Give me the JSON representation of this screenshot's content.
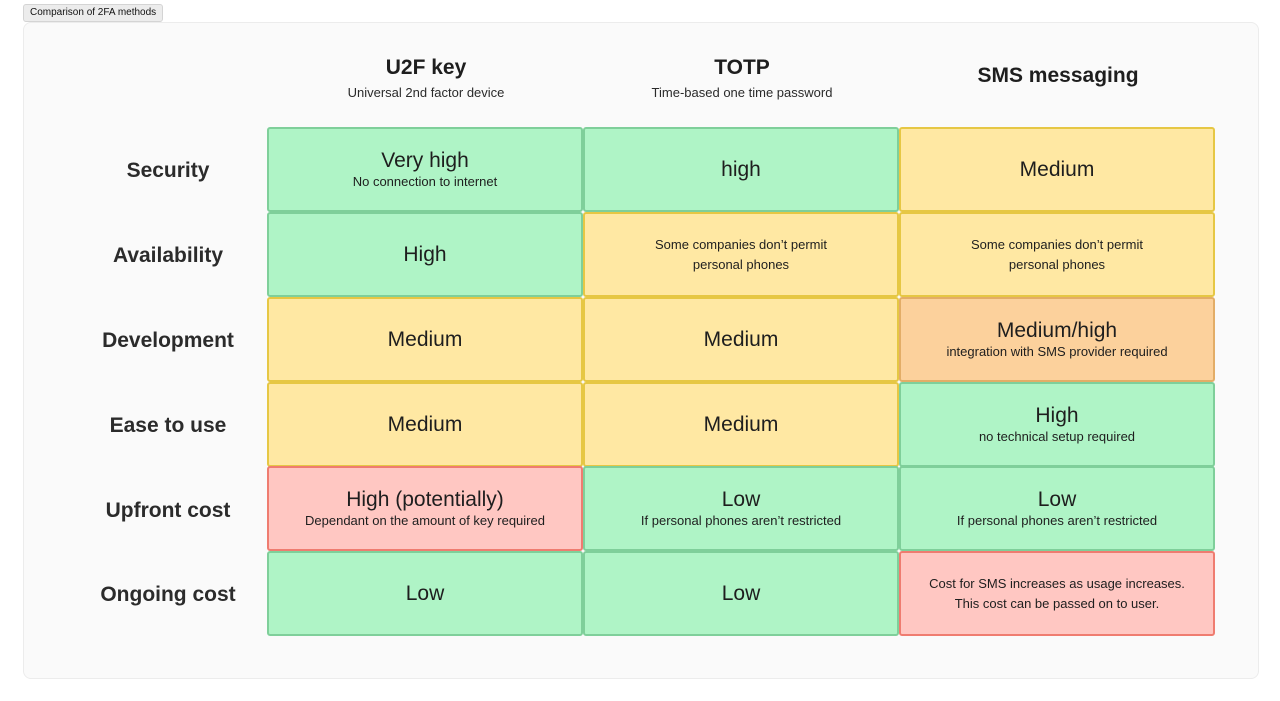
{
  "frame": {
    "label": "Comparison of 2FA methods"
  },
  "columns": [
    {
      "title": "U2F key",
      "subtitle": "Universal 2nd factor device"
    },
    {
      "title": "TOTP",
      "subtitle": "Time-based one time password"
    },
    {
      "title": "SMS messaging",
      "subtitle": ""
    }
  ],
  "rows": [
    {
      "label": "Security",
      "cells": [
        {
          "main": "Very high",
          "sub": "No connection to internet",
          "status": "green"
        },
        {
          "main": "high",
          "sub": "",
          "status": "green"
        },
        {
          "main": "Medium",
          "sub": "",
          "status": "yellow"
        }
      ]
    },
    {
      "label": "Availability",
      "cells": [
        {
          "main": "High",
          "sub": "",
          "status": "green"
        },
        {
          "text": "Some companies don’t permit personal phones",
          "status": "yellow"
        },
        {
          "text": "Some companies don’t permit personal phones",
          "status": "yellow"
        }
      ]
    },
    {
      "label": "Development",
      "cells": [
        {
          "main": "Medium",
          "sub": "",
          "status": "yellow"
        },
        {
          "main": "Medium",
          "sub": "",
          "status": "yellow"
        },
        {
          "main": "Medium/high",
          "sub": "integration with SMS provider required",
          "status": "orange"
        }
      ]
    },
    {
      "label": "Ease to use",
      "cells": [
        {
          "main": "Medium",
          "sub": "",
          "status": "yellow"
        },
        {
          "main": "Medium",
          "sub": "",
          "status": "yellow"
        },
        {
          "main": "High",
          "sub": "no technical setup required",
          "status": "green"
        }
      ]
    },
    {
      "label": "Upfront cost",
      "cells": [
        {
          "main": "High (potentially)",
          "sub": "Dependant on the amount of key required",
          "status": "red"
        },
        {
          "main": "Low",
          "sub": "If personal phones aren’t restricted",
          "status": "green"
        },
        {
          "main": "Low",
          "sub": "If personal phones aren’t restricted",
          "status": "green"
        }
      ]
    },
    {
      "label": "Ongoing cost",
      "cells": [
        {
          "main": "Low",
          "sub": "",
          "status": "green"
        },
        {
          "main": "Low",
          "sub": "",
          "status": "green"
        },
        {
          "text": "Cost for SMS increases as usage increases. This cost can be passed on to user.",
          "status": "red"
        }
      ]
    }
  ],
  "colors": {
    "green": "#aff4c6",
    "yellow": "#ffe8a3",
    "orange": "#fcd19c",
    "red": "#ffc7c2"
  }
}
